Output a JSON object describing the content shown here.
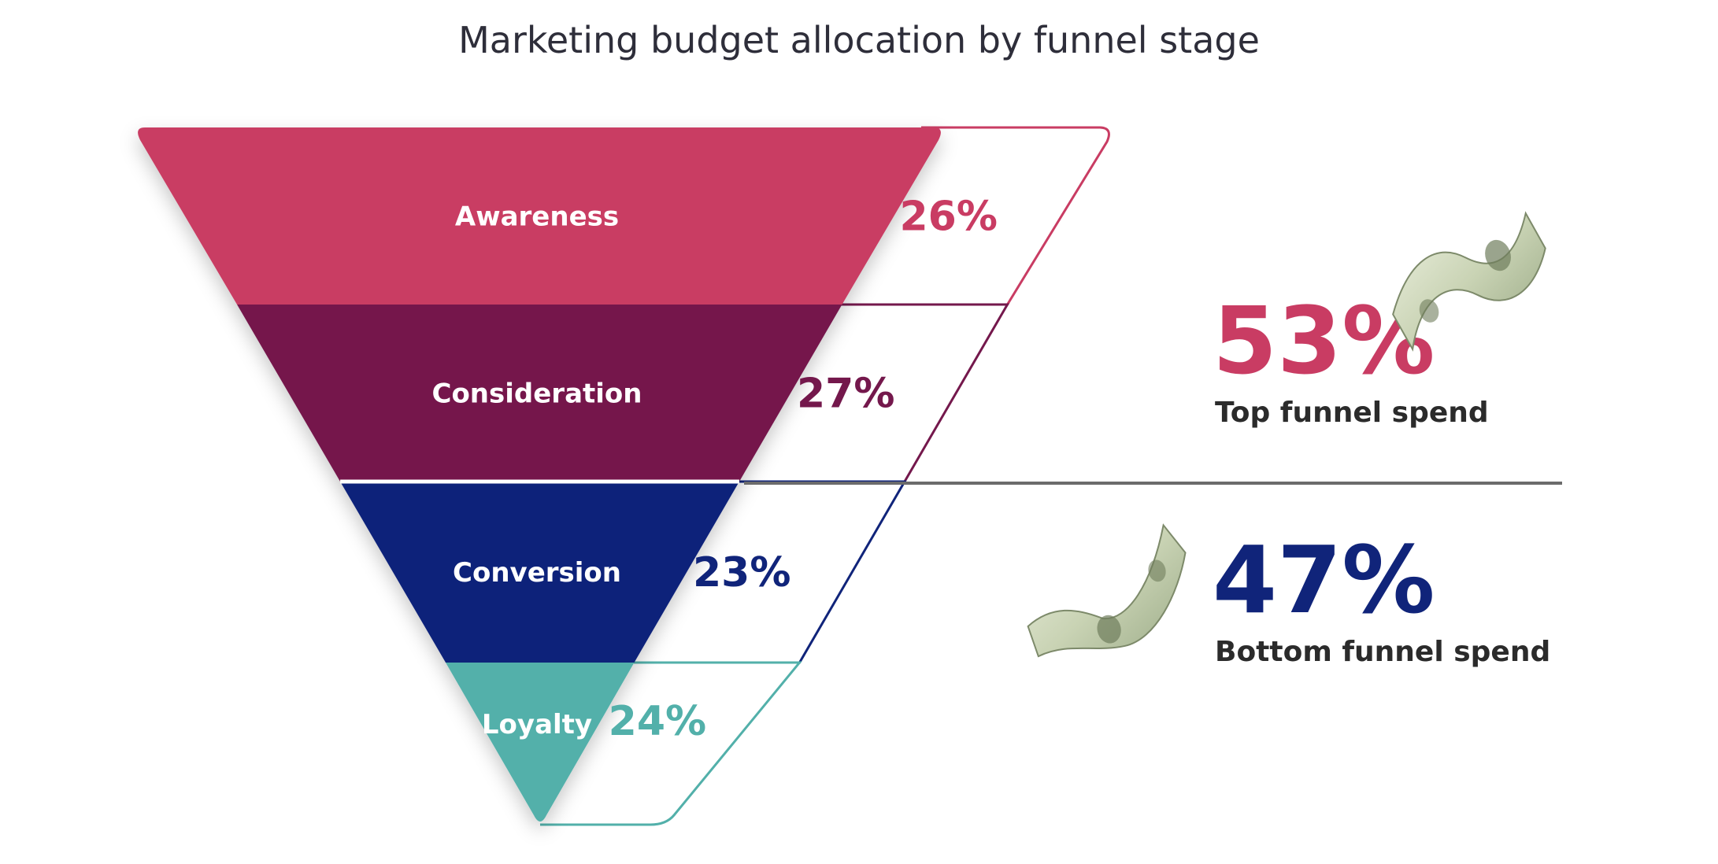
{
  "title": "Marketing budget allocation by funnel stage",
  "stages": [
    {
      "name": "Awareness",
      "value_label": "26%",
      "value": 26,
      "color": "#c93c63"
    },
    {
      "name": "Consideration",
      "value_label": "27%",
      "value": 27,
      "color": "#74184c"
    },
    {
      "name": "Conversion",
      "value_label": "23%",
      "value": 23,
      "color": "#10247a"
    },
    {
      "name": "Loyalty",
      "value_label": "24%",
      "value": 24,
      "color": "#52b0aa"
    }
  ],
  "summary": {
    "top": {
      "value_label": "53%",
      "caption": "Top funnel spend",
      "color": "#c93c63"
    },
    "bottom": {
      "value_label": "47%",
      "caption": "Bottom funnel spend",
      "color": "#10247a"
    }
  },
  "divider_color": "#6b6b6b",
  "icons": [
    "dollar-bill-icon",
    "dollar-bill-icon"
  ]
}
